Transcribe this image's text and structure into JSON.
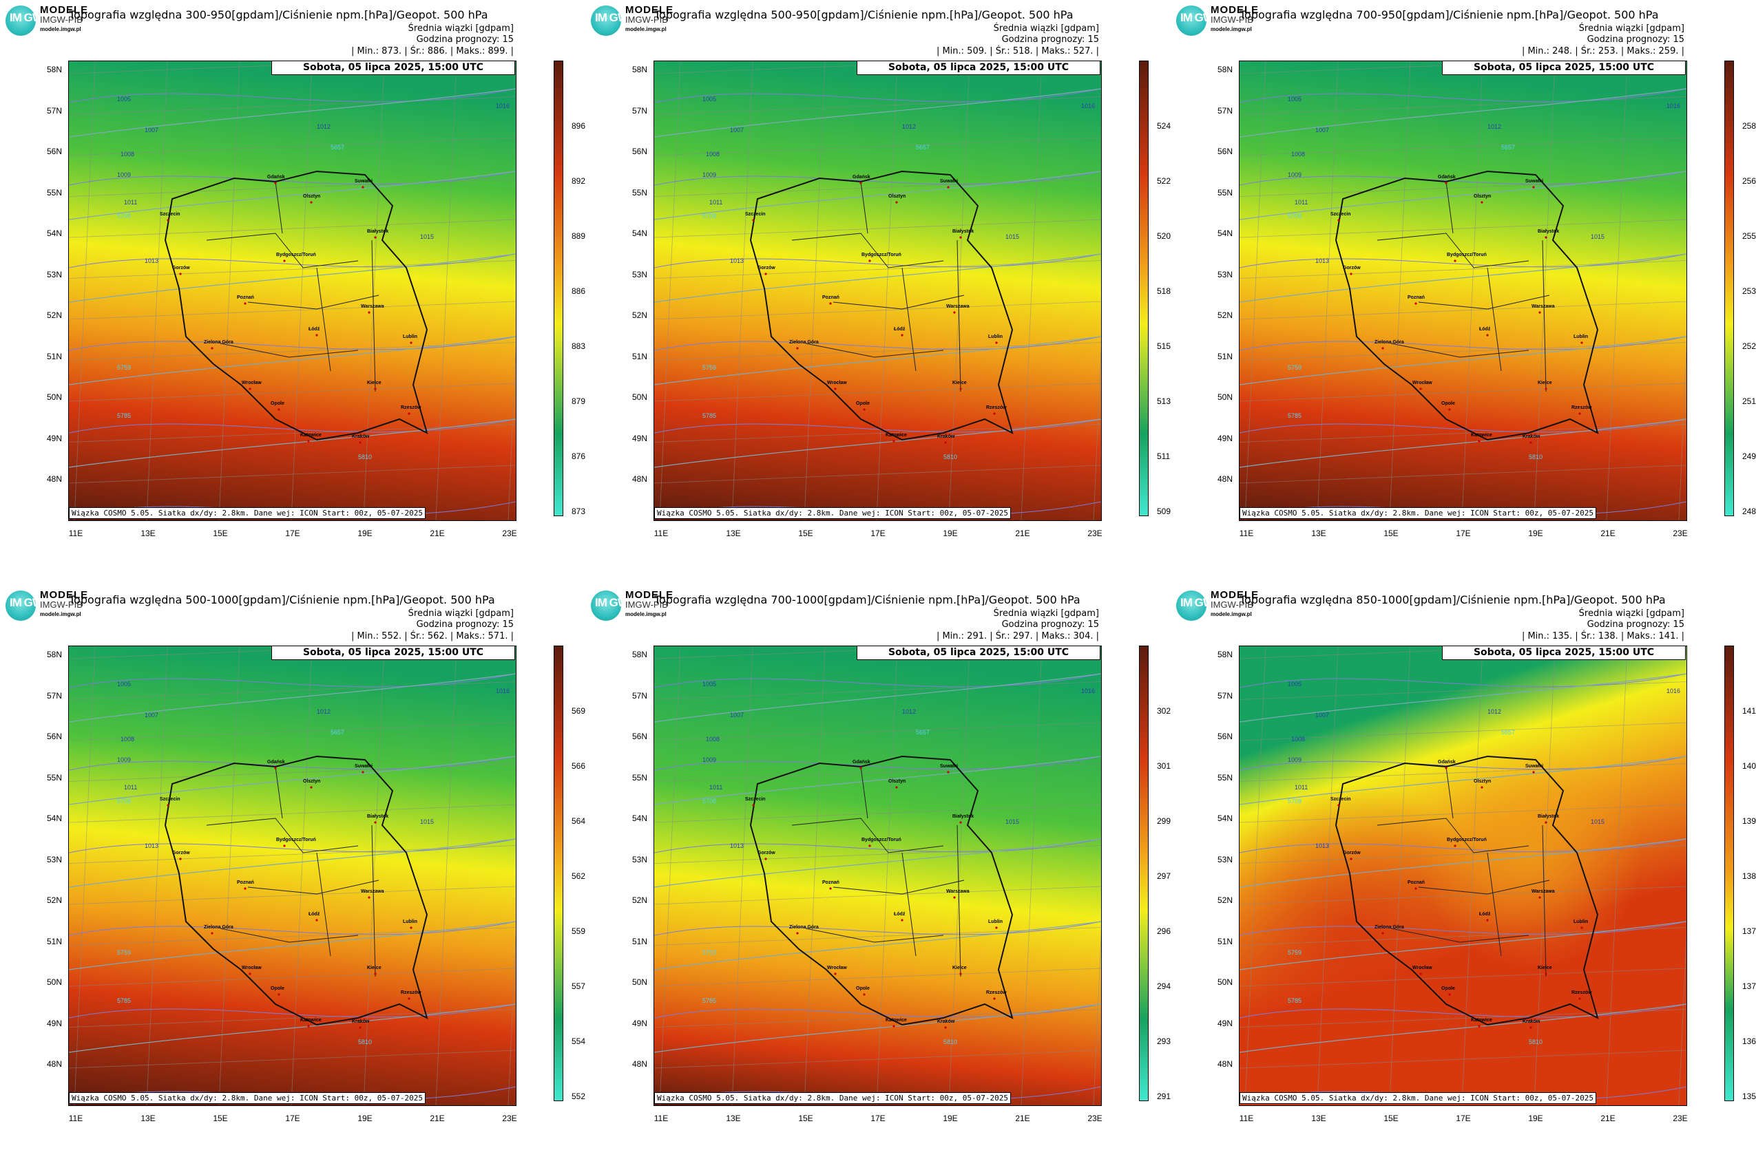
{
  "common": {
    "brand": "MODELE",
    "brand_sub": "IMGW-PIB",
    "url": "modele.imgw.pl",
    "logo_text": "IM GW",
    "subtitle": "Średnia wiązki [gdpam]",
    "forecast_hour": "Godzina prognozy: 15",
    "date": "Sobota, 05 lipca 2025, 15:00 UTC",
    "footer": "Wiązka COSMO 5.05. Siatka dx/dy: 2.8km. Dane wej: ICON Start: 00z, 05-07-2025",
    "lat_labels": [
      "58N",
      "57N",
      "56N",
      "55N",
      "54N",
      "53N",
      "52N",
      "51N",
      "50N",
      "49N",
      "48N"
    ],
    "lon_labels": [
      "11E",
      "13E",
      "15E",
      "17E",
      "19E",
      "21E",
      "23E"
    ],
    "colors": {
      "low": "#40e8d0",
      "green": "#17a35f",
      "yellow": "#f3ee1a",
      "orange": "#f0a019",
      "red": "#d7390f",
      "dark": "#5c1c0e"
    }
  },
  "panels": [
    {
      "title": "Topografia względna 300-950[gpdam]/Ciśnienie npm.[hPa]/Geopot. 500 hPa",
      "stats": "| Min.:   873. | Śr.:    886. | Maks.:    899. |",
      "scale": [
        "896",
        "892",
        "889",
        "886",
        "883",
        "879",
        "876",
        "873"
      ],
      "pattern": "band"
    },
    {
      "title": "Topografia względna 500-950[gpdam]/Ciśnienie npm.[hPa]/Geopot. 500 hPa",
      "stats": "| Min.:   509. | Śr.:    518. | Maks.:    527. |",
      "scale": [
        "524",
        "522",
        "520",
        "518",
        "515",
        "513",
        "511",
        "509"
      ],
      "pattern": "band"
    },
    {
      "title": "Topografia względna 700-950[gpdam]/Ciśnienie npm.[hPa]/Geopot. 500 hPa",
      "stats": "| Min.:   248. | Śr.:    253. | Maks.:    259. |",
      "scale": [
        "258",
        "256",
        "255",
        "253",
        "252",
        "251",
        "249",
        "248"
      ],
      "pattern": "band"
    },
    {
      "title": "Topografia względna 500-1000[gpdam]/Ciśnienie npm.[hPa]/Geopot. 500 hPa",
      "stats": "| Min.:   552. | Śr.:    562. | Maks.:    571. |",
      "scale": [
        "569",
        "566",
        "564",
        "562",
        "559",
        "557",
        "554",
        "552"
      ],
      "pattern": "band"
    },
    {
      "title": "Topografia względna 700-1000[gpdam]/Ciśnienie npm.[hPa]/Geopot. 500 hPa",
      "stats": "| Min.:   291. | Śr.:    297. | Maks.:    304. |",
      "scale": [
        "302",
        "301",
        "299",
        "297",
        "296",
        "294",
        "293",
        "291"
      ],
      "pattern": "band"
    },
    {
      "title": "Topografia względna 850-1000[gpdam]/Ciśnienie npm.[hPa]/Geopot. 500 hPa",
      "stats": "| Min.:   135. | Śr.:    138. | Maks.:    141. |",
      "scale": [
        "141",
        "140",
        "139",
        "138",
        "137",
        "137",
        "136",
        "135"
      ],
      "pattern": "blob"
    }
  ],
  "cities": [
    "Gdańsk",
    "Olsztyn",
    "Suwałki",
    "Szczecin",
    "Białystok",
    "Bydgoszcz/Toruń",
    "Gorzów",
    "Poznań",
    "Warszawa",
    "Zielona Góra",
    "Łódź",
    "Lublin",
    "Wrocław",
    "Kielce",
    "Opole",
    "Katowice",
    "Kraków",
    "Rzeszów"
  ],
  "isobars": [
    "1005",
    "1007",
    "1008",
    "1009",
    "1011",
    "1012",
    "1013",
    "1015",
    "1016"
  ],
  "geopot": [
    "5657",
    "5708",
    "5759",
    "5785",
    "5810"
  ]
}
